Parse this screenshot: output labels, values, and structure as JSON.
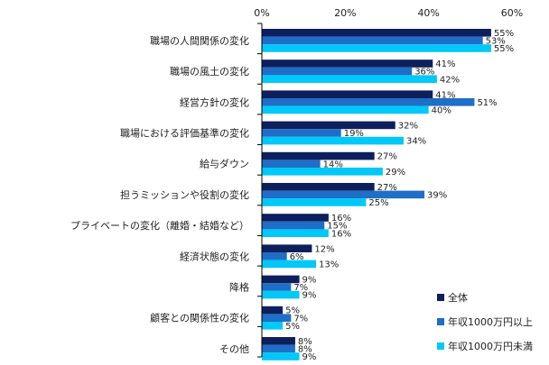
{
  "chart_data": {
    "type": "bar",
    "orientation": "horizontal",
    "categories": [
      "職場の人間関係の変化",
      "職場の風土の変化",
      "経営方針の変化",
      "職場における評価基準の変化",
      "給与ダウン",
      "担うミッションや役割の変化",
      "プライベートの変化（離婚・結婚など）",
      "経済状態の変化",
      "降格",
      "顧客との関係性の変化",
      "その他"
    ],
    "series": [
      {
        "name": "全体",
        "color": "#0d1f5c",
        "values": [
          55,
          41,
          41,
          32,
          27,
          27,
          16,
          12,
          9,
          5,
          8
        ]
      },
      {
        "name": "年収1000万円以上",
        "color": "#1f6ec7",
        "values": [
          53,
          36,
          51,
          19,
          14,
          39,
          15,
          6,
          7,
          7,
          8
        ]
      },
      {
        "name": "年収1000万円未満",
        "color": "#00c8f8",
        "values": [
          55,
          42,
          40,
          34,
          29,
          25,
          16,
          13,
          9,
          5,
          9
        ]
      }
    ],
    "xlim": [
      0,
      60
    ],
    "xticks": [
      0,
      20,
      40,
      60
    ],
    "tick_suffix": "%",
    "value_suffix": "%",
    "grid": false,
    "legend_position": "bottom-right"
  }
}
